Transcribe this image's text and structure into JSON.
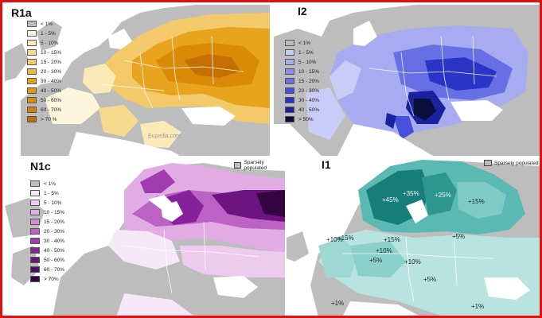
{
  "panels": {
    "r1a": {
      "title": "R1a",
      "legend": [
        {
          "label": "< 1%",
          "color": "#bdbdbd"
        },
        {
          "label": "1 - 5%",
          "color": "#fdf6dc"
        },
        {
          "label": "5 - 10%",
          "color": "#fbe9b6"
        },
        {
          "label": "10 - 15%",
          "color": "#f7da8d"
        },
        {
          "label": "15 - 20%",
          "color": "#f4c96a"
        },
        {
          "label": "20 - 30%",
          "color": "#efb640"
        },
        {
          "label": "30 - 40%",
          "color": "#e9a41f"
        },
        {
          "label": "40 - 50%",
          "color": "#e1970f"
        },
        {
          "label": "50 - 60%",
          "color": "#d98b07"
        },
        {
          "label": "60 - 70%",
          "color": "#cf7e03"
        },
        {
          "label": "> 70 %",
          "color": "#c46f00"
        }
      ],
      "credit": "Eupedia.com"
    },
    "i2": {
      "title": "I2",
      "legend": [
        {
          "label": "< 1%",
          "color": "#bdbdbd"
        },
        {
          "label": "1 - 5%",
          "color": "#c9ccf6"
        },
        {
          "label": "5 - 10%",
          "color": "#a7acf0"
        },
        {
          "label": "10 - 15%",
          "color": "#868deb"
        },
        {
          "label": "15 - 20%",
          "color": "#6670e4"
        },
        {
          "label": "20 - 30%",
          "color": "#4651dc"
        },
        {
          "label": "30 - 40%",
          "color": "#2a35c8"
        },
        {
          "label": "40 - 50%",
          "color": "#1a22a0"
        },
        {
          "label": "> 50%",
          "color": "#0a0e3a"
        }
      ]
    },
    "n1c": {
      "title": "N1c",
      "sparse_label": "Sparsely populated",
      "legend": [
        {
          "label": "< 1%",
          "color": "#bdbdbd"
        },
        {
          "label": "1 - 5%",
          "color": "#f6e8f6"
        },
        {
          "label": "5 - 10%",
          "color": "#eccbee"
        },
        {
          "label": "10 - 15%",
          "color": "#e1ace4"
        },
        {
          "label": "15 - 20%",
          "color": "#d08ad6"
        },
        {
          "label": "20 - 30%",
          "color": "#bb62c4"
        },
        {
          "label": "30 - 40%",
          "color": "#a23bb0"
        },
        {
          "label": "40 - 50%",
          "color": "#88229a"
        },
        {
          "label": "50 - 60%",
          "color": "#6c1480"
        },
        {
          "label": "60 - 70%",
          "color": "#500b62"
        },
        {
          "label": "> 70%",
          "color": "#350542"
        }
      ]
    },
    "i1": {
      "title": "I1",
      "sparse_label": "Sparsely populated",
      "labels": [
        "+45%",
        "+35%",
        "+25%",
        "+15%",
        "+15%",
        "+10%",
        "+15%",
        "+5%",
        "+10%",
        "+5%",
        "+10%",
        "+5%",
        "+1%",
        "+1%"
      ]
    }
  }
}
